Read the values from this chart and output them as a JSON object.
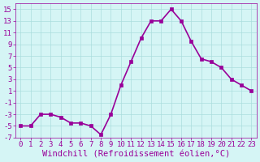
{
  "x": [
    0,
    1,
    2,
    3,
    4,
    5,
    6,
    7,
    8,
    9,
    10,
    11,
    12,
    13,
    14,
    15,
    16,
    17,
    18,
    19,
    20,
    21,
    22,
    23
  ],
  "y": [
    -5,
    -5,
    -3,
    -3,
    -3.5,
    -4.5,
    -4.5,
    -5,
    -6.5,
    -3,
    2,
    6,
    10,
    13,
    13,
    15,
    13,
    9.5,
    6.5,
    6,
    5,
    3,
    2,
    1
  ],
  "line_color": "#990099",
  "marker_color": "#990099",
  "bg_color": "#d5f5f5",
  "grid_color": "#aadddd",
  "xlabel": "Windchill (Refroidissement éolien,°C)",
  "xlabel_color": "#990099",
  "ylim": [
    -7,
    16
  ],
  "yticks": [
    -7,
    -5,
    -3,
    -1,
    1,
    3,
    5,
    7,
    9,
    11,
    13,
    15
  ],
  "xticks": [
    0,
    1,
    2,
    3,
    4,
    5,
    6,
    7,
    8,
    9,
    10,
    11,
    12,
    13,
    14,
    15,
    16,
    17,
    18,
    19,
    20,
    21,
    22,
    23
  ],
  "tick_color": "#990099",
  "tick_fontsize": 6.5,
  "xlabel_fontsize": 7.5,
  "linewidth": 1.2,
  "markersize": 2.5
}
